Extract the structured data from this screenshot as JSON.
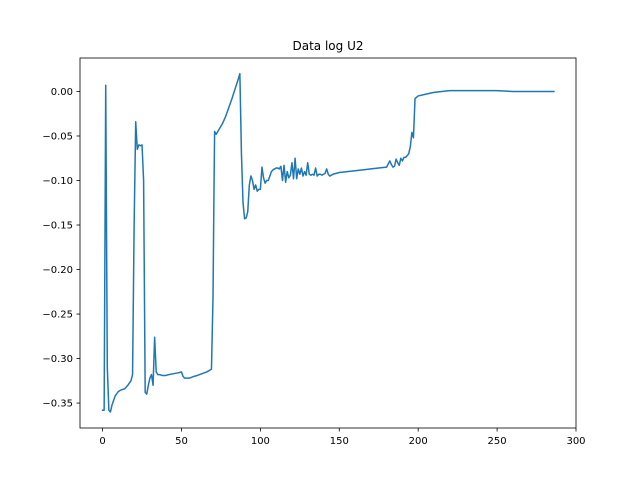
{
  "chart_data": {
    "type": "line",
    "title": "Data log U2",
    "xlabel": "",
    "ylabel": "",
    "xlim": [
      -14.3,
      300
    ],
    "ylim": [
      -0.378,
      0.0376
    ],
    "xticks": [
      0,
      50,
      100,
      150,
      200,
      250,
      300
    ],
    "xtick_labels": [
      "0",
      "50",
      "100",
      "150",
      "200",
      "250",
      "300"
    ],
    "yticks": [
      0.0,
      -0.05,
      -0.1,
      -0.15,
      -0.2,
      -0.25,
      -0.3,
      -0.35
    ],
    "ytick_labels": [
      "0.00",
      "−0.05",
      "−0.10",
      "−0.15",
      "−0.20",
      "−0.25",
      "−0.30",
      "−0.35"
    ],
    "grid": false,
    "series": [
      {
        "name": "U2",
        "color": "#1f77b4",
        "x": [
          0,
          1,
          2,
          3,
          4,
          5,
          6,
          8,
          10,
          12,
          14,
          16,
          18,
          19,
          20,
          21,
          22,
          23,
          24,
          25,
          26,
          27,
          28,
          29,
          30,
          31,
          32,
          33,
          34,
          35,
          36,
          38,
          40,
          42,
          45,
          48,
          50,
          51,
          52,
          55,
          58,
          60,
          63,
          66,
          69,
          70,
          70.5,
          71,
          72,
          74,
          76,
          78,
          80,
          82,
          84,
          86,
          87,
          88,
          89,
          90,
          91,
          92,
          93,
          94,
          95,
          96,
          97,
          98,
          99,
          100,
          101,
          102,
          103,
          104,
          105,
          106,
          107,
          108,
          109,
          110,
          111,
          112,
          113,
          114,
          115,
          116,
          117,
          118,
          119,
          120,
          121,
          122,
          123,
          124,
          125,
          126,
          127,
          128,
          129,
          130,
          131,
          132,
          133,
          134,
          135,
          136,
          137,
          138,
          139,
          140,
          141,
          142,
          143,
          144,
          145,
          146,
          148,
          150,
          155,
          160,
          165,
          170,
          175,
          180,
          182,
          183,
          184,
          185,
          186,
          187,
          188,
          189,
          190,
          191,
          192,
          193,
          194,
          195,
          196,
          197,
          198,
          200,
          205,
          210,
          215,
          220,
          230,
          240,
          250,
          260,
          270,
          280,
          286
        ],
        "values": [
          -0.358,
          -0.358,
          0.007,
          -0.31,
          -0.358,
          -0.36,
          -0.352,
          -0.342,
          -0.337,
          -0.335,
          -0.334,
          -0.33,
          -0.325,
          -0.318,
          -0.15,
          -0.034,
          -0.065,
          -0.06,
          -0.061,
          -0.06,
          -0.1,
          -0.338,
          -0.34,
          -0.33,
          -0.322,
          -0.318,
          -0.33,
          -0.276,
          -0.315,
          -0.318,
          -0.318,
          -0.319,
          -0.319,
          -0.318,
          -0.317,
          -0.316,
          -0.315,
          -0.32,
          -0.322,
          -0.322,
          -0.32,
          -0.319,
          -0.317,
          -0.315,
          -0.312,
          -0.23,
          -0.13,
          -0.045,
          -0.048,
          -0.042,
          -0.036,
          -0.028,
          -0.018,
          -0.008,
          0.003,
          0.014,
          0.02,
          -0.07,
          -0.125,
          -0.143,
          -0.142,
          -0.135,
          -0.105,
          -0.095,
          -0.1,
          -0.11,
          -0.105,
          -0.112,
          -0.11,
          -0.11,
          -0.085,
          -0.097,
          -0.103,
          -0.1,
          -0.1,
          -0.095,
          -0.09,
          -0.088,
          -0.087,
          -0.086,
          -0.086,
          -0.087,
          -0.084,
          -0.1,
          -0.083,
          -0.102,
          -0.09,
          -0.097,
          -0.094,
          -0.08,
          -0.098,
          -0.075,
          -0.098,
          -0.087,
          -0.093,
          -0.086,
          -0.095,
          -0.09,
          -0.094,
          -0.08,
          -0.093,
          -0.094,
          -0.093,
          -0.094,
          -0.086,
          -0.095,
          -0.093,
          -0.093,
          -0.094,
          -0.093,
          -0.092,
          -0.087,
          -0.093,
          -0.095,
          -0.094,
          -0.093,
          -0.092,
          -0.091,
          -0.09,
          -0.089,
          -0.088,
          -0.087,
          -0.086,
          -0.085,
          -0.078,
          -0.082,
          -0.085,
          -0.084,
          -0.076,
          -0.08,
          -0.083,
          -0.075,
          -0.078,
          -0.074,
          -0.074,
          -0.072,
          -0.07,
          -0.062,
          -0.046,
          -0.052,
          -0.008,
          -0.005,
          -0.003,
          -0.001,
          0.0,
          0.001,
          0.001,
          0.001,
          0.001,
          0.0,
          0.0,
          0.0,
          0.0
        ]
      }
    ]
  }
}
